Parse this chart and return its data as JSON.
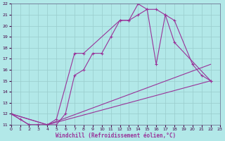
{
  "xlabel": "Windchill (Refroidissement éolien,°C)",
  "bg_color": "#b2e8e8",
  "line_color": "#993399",
  "grid_color": "#99cccc",
  "xlim": [
    0,
    23
  ],
  "ylim": [
    11,
    22
  ],
  "xticks": [
    0,
    1,
    2,
    3,
    4,
    5,
    6,
    7,
    8,
    9,
    10,
    11,
    12,
    13,
    14,
    15,
    16,
    17,
    18,
    19,
    20,
    21,
    22,
    23
  ],
  "yticks": [
    11,
    12,
    13,
    14,
    15,
    16,
    17,
    18,
    19,
    20,
    21,
    22
  ],
  "series": [
    {
      "x": [
        0,
        1,
        2,
        3,
        4,
        5,
        6,
        7,
        8,
        9,
        10,
        11,
        12,
        13,
        14,
        15,
        16,
        17,
        18,
        22
      ],
      "y": [
        12,
        11.5,
        11,
        11,
        11,
        11,
        12,
        15.5,
        16,
        17.5,
        17.5,
        19,
        20.5,
        20.5,
        21,
        21.5,
        21.5,
        21,
        18.5,
        15
      ]
    },
    {
      "x": [
        0,
        2,
        3,
        4,
        5,
        7,
        8,
        12,
        13,
        14,
        15,
        16,
        17,
        18,
        20,
        21,
        22
      ],
      "y": [
        12,
        11,
        11,
        11,
        11.5,
        17.5,
        17.5,
        20.5,
        20.5,
        22,
        21.5,
        16.5,
        21,
        20.5,
        16.5,
        15.5,
        15
      ]
    },
    {
      "x": [
        0,
        4,
        22
      ],
      "y": [
        12,
        11,
        16.5
      ]
    },
    {
      "x": [
        0,
        4,
        22
      ],
      "y": [
        12,
        11,
        15
      ]
    }
  ]
}
